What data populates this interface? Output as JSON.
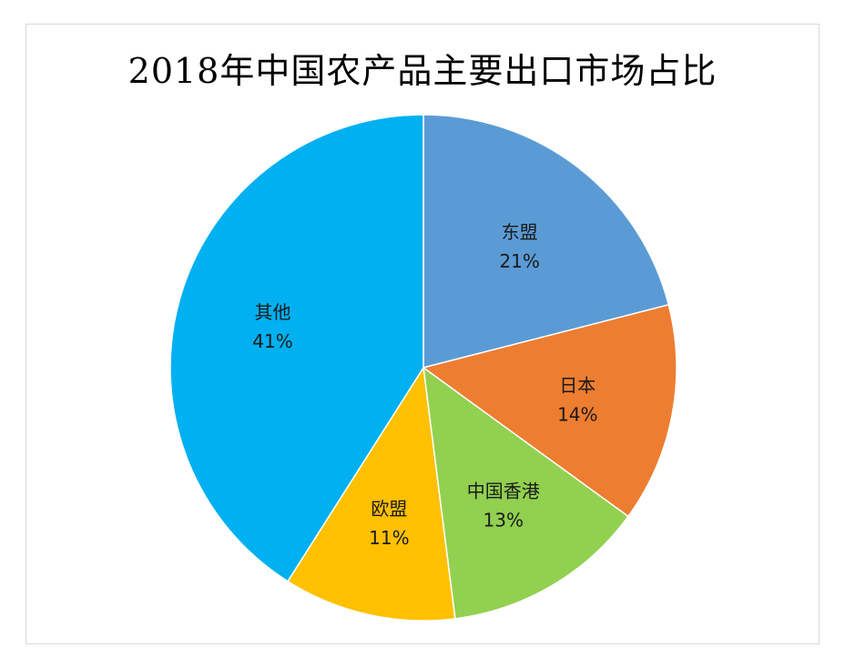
{
  "chart_data": {
    "type": "pie",
    "title": "2018年中国农产品主要出口市场占比",
    "slices": [
      {
        "label": "东盟",
        "value": 21,
        "display": "21%",
        "color": "#5b9bd5"
      },
      {
        "label": "日本",
        "value": 14,
        "display": "14%",
        "color": "#ed7d31"
      },
      {
        "label": "中国香港",
        "value": 13,
        "display": "13%",
        "color": "#92d050"
      },
      {
        "label": "欧盟",
        "value": 11,
        "display": "11%",
        "color": "#ffc000"
      },
      {
        "label": "其他",
        "value": 41,
        "display": "41%",
        "color": "#00b0f0"
      }
    ],
    "legend": "none",
    "start": "top",
    "direction": "clockwise"
  }
}
